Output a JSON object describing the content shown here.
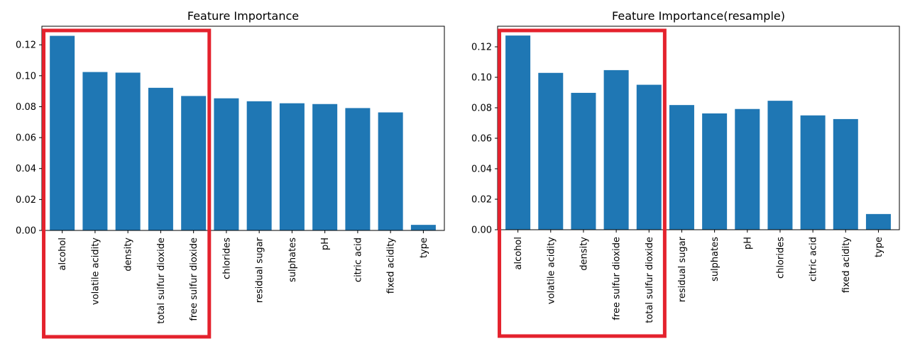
{
  "chart_data": [
    {
      "type": "bar",
      "title": "Feature Importance",
      "xlabel": "",
      "ylabel": "",
      "ylim": [
        0,
        0.132
      ],
      "yticks": [
        0.0,
        0.02,
        0.04,
        0.06,
        0.08,
        0.1,
        0.12
      ],
      "categories": [
        "alcohol",
        "volatile acidity",
        "density",
        "total sulfur dioxide",
        "free sulfur dioxide",
        "chlorides",
        "residual sugar",
        "sulphates",
        "pH",
        "citric acid",
        "fixed acidity",
        "type"
      ],
      "values": [
        0.1258,
        0.1024,
        0.102,
        0.0922,
        0.0869,
        0.0854,
        0.0835,
        0.0822,
        0.0817,
        0.0791,
        0.0763,
        0.0036
      ],
      "bar_color": "#1f77b4",
      "highlight": {
        "from_index": 0,
        "to_index": 4,
        "color": "#e4222d"
      }
    },
    {
      "type": "bar",
      "title": "Feature Importance(resample)",
      "xlabel": "",
      "ylabel": "",
      "ylim": [
        0,
        0.1335
      ],
      "yticks": [
        0.0,
        0.02,
        0.04,
        0.06,
        0.08,
        0.1,
        0.12
      ],
      "categories": [
        "alcohol",
        "volatile acidity",
        "density",
        "free sulfur dioxide",
        "total sulfur dioxide",
        "residual sugar",
        "sulphates",
        "pH",
        "chlorides",
        "citric acid",
        "fixed acidity",
        "type"
      ],
      "values": [
        0.1274,
        0.1029,
        0.0898,
        0.1047,
        0.0951,
        0.0818,
        0.0763,
        0.0792,
        0.0846,
        0.075,
        0.0726,
        0.0103
      ],
      "bar_color": "#1f77b4",
      "highlight": {
        "from_index": 0,
        "to_index": 4,
        "color": "#e4222d"
      }
    }
  ]
}
